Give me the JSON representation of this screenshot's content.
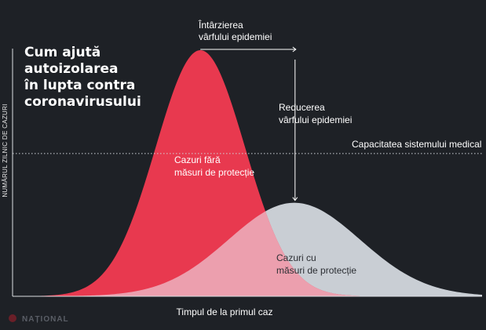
{
  "title_lines": [
    "Cum ajută",
    "autoizolarea",
    "în lupta contra",
    "coronavirusului"
  ],
  "watermark": "NAȚIONAL",
  "colors": {
    "background": "#1e2126",
    "no_measures": "#e8394f",
    "with_measures": "#c9ced4",
    "overlap": "#ec9fae"
  },
  "chart_data": {
    "type": "area",
    "xlabel": "Timpul de la primul caz",
    "ylabel": "NUMĂRUL ZILNIC DE CAZURI",
    "grid": false,
    "series": [
      {
        "name_lines": [
          "Cazuri fără",
          "măsuri de protecție"
        ],
        "shape": "gaussian",
        "peak_x": 0.4,
        "peak_y": 1.0,
        "width": 0.095
      },
      {
        "name_lines": [
          "Cazuri cu",
          "măsuri de protecție"
        ],
        "shape": "gaussian",
        "peak_x": 0.6,
        "peak_y": 0.38,
        "width": 0.14
      }
    ],
    "threshold": {
      "label": "Capacitatea sistemului medical",
      "value": 0.58
    },
    "annotations": [
      {
        "name": "delay",
        "lines": [
          "Întârzierea",
          "vârfului epidemiei"
        ]
      },
      {
        "name": "reduction",
        "lines": [
          "Reducerea",
          "vârfului epidemiei"
        ]
      }
    ]
  }
}
